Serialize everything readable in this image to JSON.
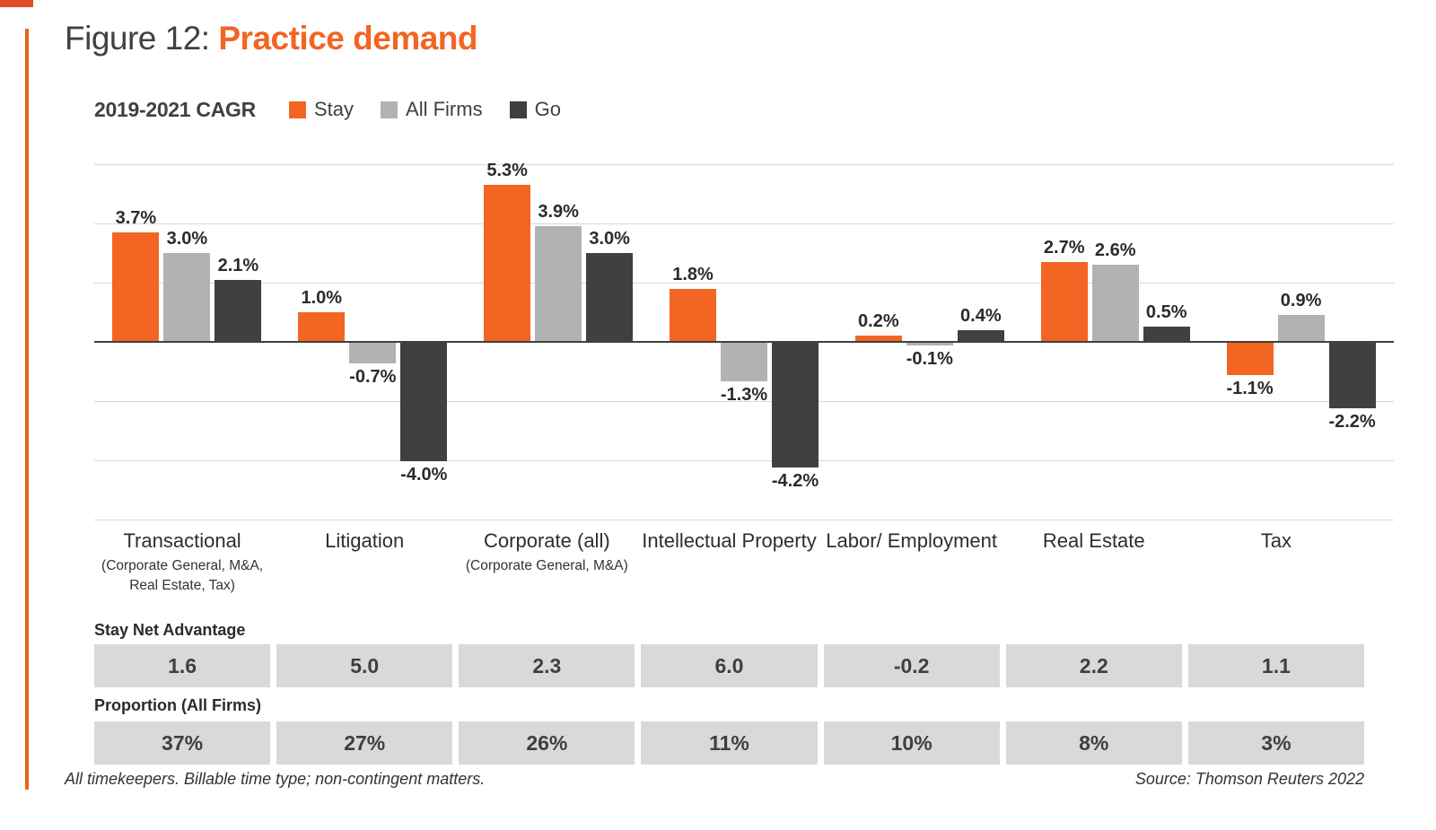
{
  "figure": {
    "prefix": "Figure 12:",
    "title": "Practice demand"
  },
  "legend": {
    "measure_label": "2019-2021 CAGR"
  },
  "chart_data": {
    "type": "bar",
    "title": "Figure 12: Practice demand",
    "measure": "2019-2021 CAGR",
    "categories": [
      "Transactional",
      "Litigation",
      "Corporate (all)",
      "Intellectual Property",
      "Labor/ Employment",
      "Real Estate",
      "Tax"
    ],
    "category_subtitles": [
      "(Corporate General, M&A, Real Estate, Tax)",
      "",
      "(Corporate General, M&A)",
      "",
      "",
      "",
      ""
    ],
    "series": [
      {
        "name": "Stay",
        "color": "#F26522",
        "values": [
          3.7,
          1.0,
          5.3,
          1.8,
          0.2,
          2.7,
          -1.1
        ]
      },
      {
        "name": "All Firms",
        "color": "#B2B2B2",
        "values": [
          3.0,
          -0.7,
          3.9,
          -1.3,
          -0.1,
          2.6,
          0.9
        ]
      },
      {
        "name": "Go",
        "color": "#404040",
        "values": [
          2.1,
          -4.0,
          3.0,
          -4.2,
          0.4,
          0.5,
          -2.2
        ]
      }
    ],
    "unit": "%",
    "ylim": [
      -6,
      6
    ],
    "gridline_values": [
      6,
      4,
      2,
      0,
      -2,
      -4,
      -6
    ],
    "grid": true,
    "legend_position": "top"
  },
  "table": {
    "row1_label": "Stay Net Advantage",
    "row1_values": [
      1.6,
      5.0,
      2.3,
      6.0,
      -0.2,
      2.2,
      1.1
    ],
    "row2_label": "Proportion (All Firms)",
    "row2_values": [
      "37%",
      "27%",
      "26%",
      "11%",
      "10%",
      "8%",
      "3%"
    ]
  },
  "footnotes": {
    "left": "All timekeepers. Billable time type; non-contingent matters.",
    "right": "Source: Thomson Reuters 2022"
  },
  "colors": {
    "accent_orange": "#F26522",
    "bar_gray": "#B2B2B2",
    "bar_dark": "#404040",
    "cell_gray": "#D9D9D9",
    "gridline": "#D8D8D8",
    "zero_line": "#404040",
    "corner_strip": "#E04B28"
  }
}
